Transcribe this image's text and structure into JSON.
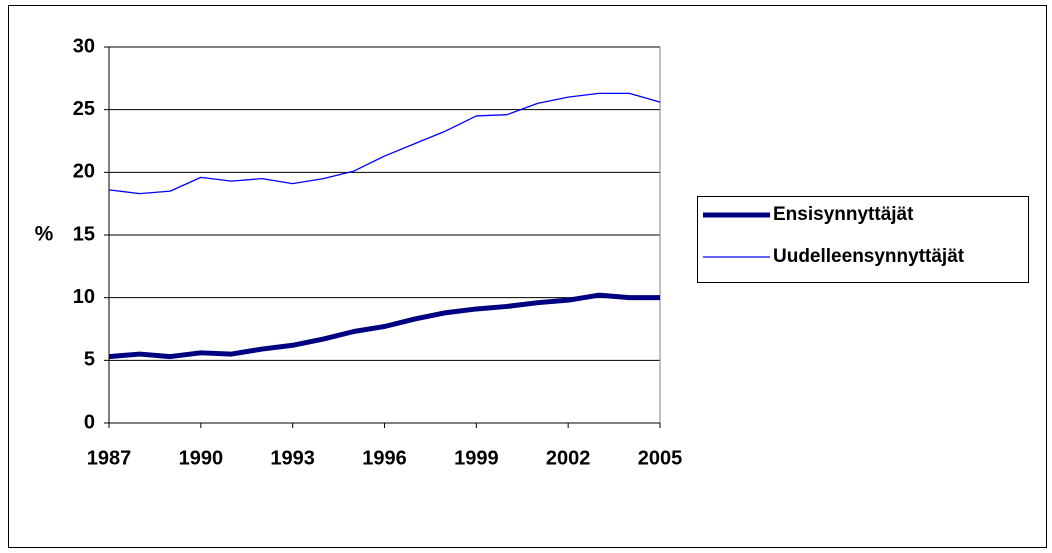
{
  "chart_data": {
    "type": "line",
    "ylabel": "%",
    "x": [
      1987,
      1988,
      1989,
      1990,
      1991,
      1992,
      1993,
      1994,
      1995,
      1996,
      1997,
      1998,
      1999,
      2000,
      2001,
      2002,
      2003,
      2004,
      2005
    ],
    "series": [
      {
        "name": "Ensisynnyttäjät",
        "color": "#000080",
        "values": [
          5.3,
          5.5,
          5.3,
          5.6,
          5.5,
          5.9,
          6.2,
          6.7,
          7.3,
          7.7,
          8.3,
          8.8,
          9.1,
          9.3,
          9.6,
          9.8,
          10.2,
          10.0,
          10.0
        ]
      },
      {
        "name": "Uudelleensynnyttäjät",
        "color": "#0000ff",
        "values": [
          18.6,
          18.3,
          18.5,
          19.6,
          19.3,
          19.5,
          19.1,
          19.5,
          20.1,
          21.3,
          22.3,
          23.3,
          24.5,
          24.6,
          25.5,
          26.0,
          26.3,
          26.3,
          25.6
        ]
      }
    ],
    "xlim": [
      1987,
      2005
    ],
    "xticks": [
      1987,
      1990,
      1993,
      1996,
      1999,
      2002,
      2005
    ],
    "ylim": [
      0,
      30
    ],
    "yticks": [
      0,
      5,
      10,
      15,
      20,
      25,
      30
    ],
    "grid": true,
    "legend": "right"
  }
}
